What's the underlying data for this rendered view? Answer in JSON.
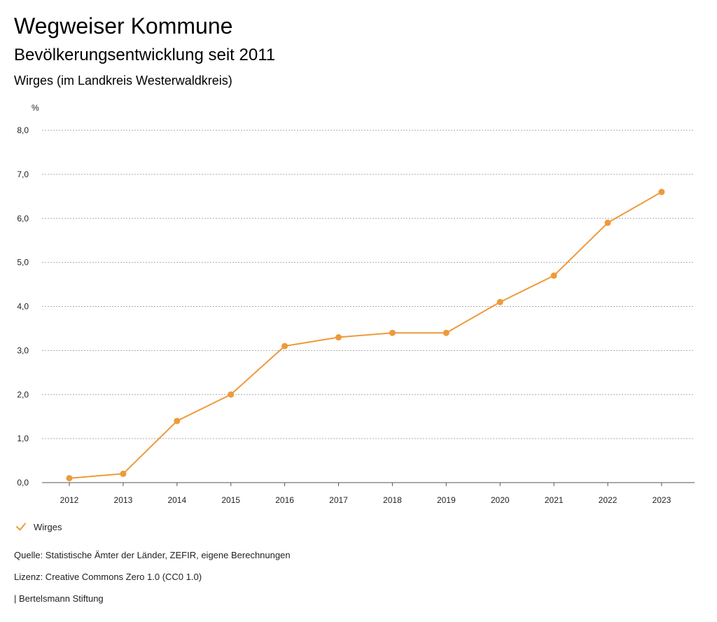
{
  "header": {
    "title": "Wegweiser Kommune",
    "subtitle": "Bevölkerungsentwicklung seit 2011",
    "region": "Wirges (im Landkreis Westerwaldkreis)"
  },
  "chart_data": {
    "type": "line",
    "title": "Bevölkerungsentwicklung seit 2011",
    "ylabel": "%",
    "xlabel": "",
    "x": [
      "2012",
      "2013",
      "2014",
      "2015",
      "2016",
      "2017",
      "2018",
      "2019",
      "2020",
      "2021",
      "2022",
      "2023"
    ],
    "series": [
      {
        "name": "Wirges",
        "color": "#ee9a3a",
        "values": [
          0.1,
          0.2,
          1.4,
          2.0,
          3.1,
          3.3,
          3.4,
          3.4,
          4.1,
          4.7,
          5.9,
          6.6
        ]
      }
    ],
    "ylim": [
      0,
      8
    ],
    "yticks": [
      "0,0",
      "1,0",
      "2,0",
      "3,0",
      "4,0",
      "5,0",
      "6,0",
      "7,0",
      "8,0"
    ],
    "grid": true,
    "legend_position": "bottom-left"
  },
  "legend": {
    "label": "Wirges",
    "icon": "check-icon"
  },
  "footer": {
    "source": "Quelle: Statistische Ämter der Länder, ZEFIR, eigene Berechnungen",
    "license": "Lizenz: Creative Commons Zero 1.0 (CC0 1.0)",
    "publisher": "| Bertelsmann Stiftung"
  }
}
